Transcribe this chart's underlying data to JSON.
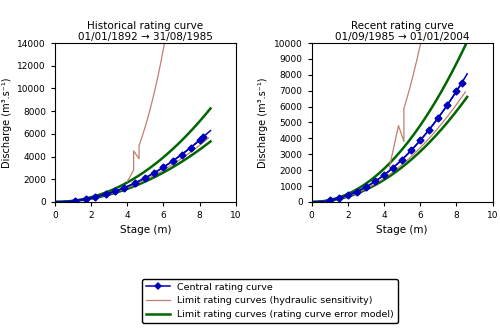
{
  "title_left": "Historical rating curve\n01/01/1892 → 31/08/1985",
  "title_right": "Recent rating curve\n01/09/1985 → 01/01/2004",
  "xlabel": "Stage (m)",
  "ylabel": "Discharge (m³.s⁻¹)",
  "left_ylim": [
    0,
    14000
  ],
  "right_ylim": [
    0,
    10000
  ],
  "xlim": [
    0,
    10
  ],
  "left_yticks": [
    0,
    2000,
    4000,
    6000,
    8000,
    10000,
    12000,
    14000
  ],
  "right_yticks": [
    0,
    1000,
    2000,
    3000,
    4000,
    5000,
    6000,
    7000,
    8000,
    9000,
    10000
  ],
  "xticks": [
    0,
    2,
    4,
    6,
    8,
    10
  ],
  "central_color": "#0000bb",
  "hydraulic_color": "#c08070",
  "error_model_color": "#006600",
  "legend_labels": [
    "Central rating curve",
    "Limit rating curves (hydraulic sensitivity)",
    "Limit rating curves (rating curve error model)"
  ]
}
